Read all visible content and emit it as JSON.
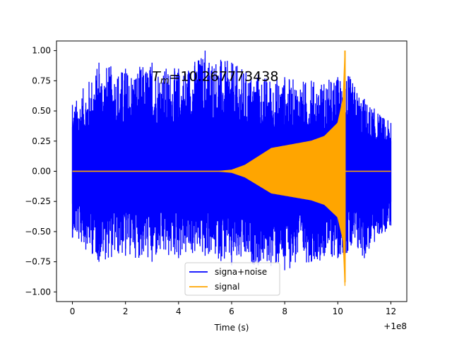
{
  "chart_data": {
    "type": "line",
    "title": "",
    "xlabel": "Time (s)",
    "ylabel": "",
    "x_offset_label": "+1e8",
    "xlim": [
      -0.6,
      12.6
    ],
    "ylim": [
      -1.08,
      1.08
    ],
    "xticks": [
      0,
      2,
      4,
      6,
      8,
      10,
      12
    ],
    "xtick_labels": [
      "0",
      "2",
      "4",
      "6",
      "8",
      "10",
      "12"
    ],
    "yticks": [
      -1.0,
      -0.75,
      -0.5,
      -0.25,
      0.0,
      0.25,
      0.5,
      0.75,
      1.0
    ],
    "ytick_labels": [
      "−1.00",
      "−0.75",
      "−0.50",
      "−0.25",
      "0.00",
      "0.25",
      "0.50",
      "0.75",
      "1.00"
    ],
    "grid": false,
    "legend": {
      "placement": "bottom-center"
    },
    "annotation": {
      "prefix": "T",
      "subscript": "m",
      "suffix": "=10.267773438",
      "x": 3.0,
      "y": 0.75
    },
    "series": [
      {
        "name": "signa+noise",
        "color": "#0000ff",
        "description_envelope": {
          "x": [
            0,
            1,
            2,
            3,
            4,
            5,
            6,
            7,
            8,
            9,
            10,
            10.27,
            11,
            12
          ],
          "ymax": [
            0.55,
            0.9,
            0.85,
            0.9,
            0.85,
            1.0,
            0.9,
            0.8,
            0.78,
            0.75,
            0.78,
            0.85,
            0.6,
            0.4
          ],
          "ymin": [
            -0.55,
            -0.75,
            -0.7,
            -0.75,
            -0.72,
            -0.7,
            -0.78,
            -0.78,
            -0.82,
            -0.75,
            -0.72,
            -0.7,
            -0.72,
            -0.45
          ]
        }
      },
      {
        "name": "signal",
        "color": "#ffa500",
        "envelope": {
          "x": [
            0,
            5.5,
            6.0,
            6.5,
            7.0,
            7.5,
            8.0,
            9.0,
            9.5,
            10.0,
            10.2,
            10.27,
            10.3,
            12.0
          ],
          "y": [
            0.0,
            0.0,
            0.01,
            0.05,
            0.12,
            0.19,
            0.21,
            0.25,
            0.29,
            0.4,
            0.6,
            1.0,
            0.0,
            0.0
          ]
        },
        "peak_min": -0.92,
        "peak_x": 10.27
      }
    ]
  }
}
